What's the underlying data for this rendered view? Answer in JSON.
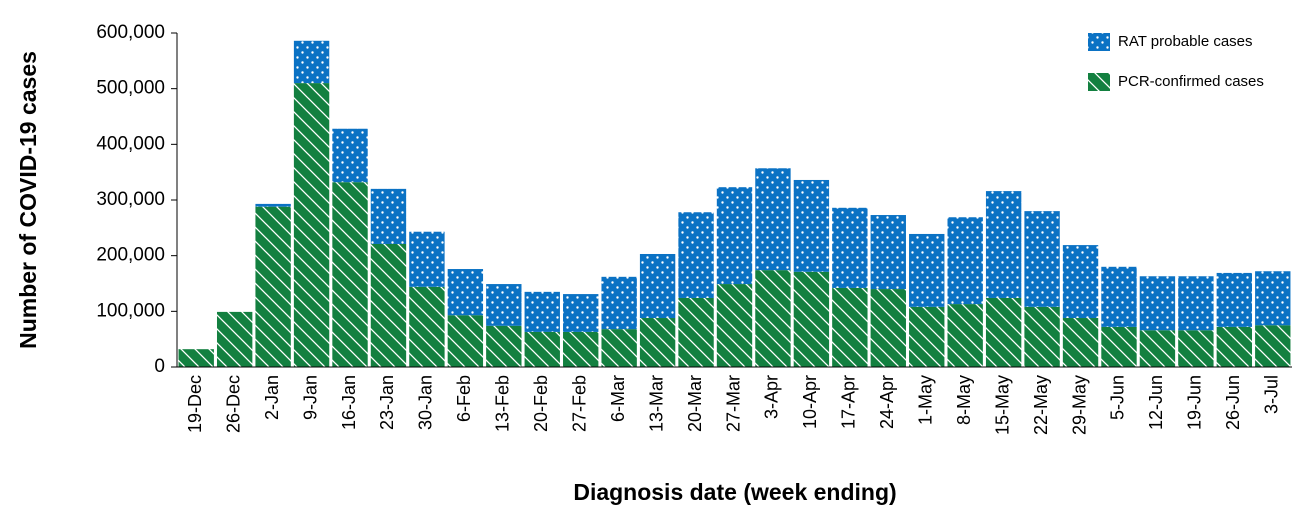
{
  "chart_data": {
    "type": "stacked_bar",
    "x_label": "Diagnosis date (week ending)",
    "y_label": "Number of COVID-19 cases",
    "categories": [
      "19-Dec",
      "26-Dec",
      "2-Jan",
      "9-Jan",
      "16-Jan",
      "23-Jan",
      "30-Jan",
      "6-Feb",
      "13-Feb",
      "20-Feb",
      "27-Feb",
      "6-Mar",
      "13-Mar",
      "20-Mar",
      "27-Mar",
      "3-Apr",
      "10-Apr",
      "17-Apr",
      "24-Apr",
      "1-May",
      "8-May",
      "15-May",
      "22-May",
      "29-May",
      "5-Jun",
      "12-Jun",
      "19-Jun",
      "26-Jun",
      "3-Jul"
    ],
    "series": [
      {
        "name": "PCR-confirmed cases",
        "color": "#138040",
        "pattern": "hatch",
        "values": [
          32000,
          99000,
          288000,
          510000,
          332000,
          221000,
          144000,
          93000,
          74000,
          63000,
          63000,
          68000,
          88000,
          124000,
          149000,
          174000,
          171000,
          142000,
          140000,
          108000,
          113000,
          124000,
          108000,
          88000,
          72000,
          66000,
          66000,
          72000,
          75000
        ]
      },
      {
        "name": "RAT probable cases",
        "color": "#0b72c4",
        "pattern": "dots",
        "values": [
          0,
          0,
          5000,
          76000,
          96000,
          99000,
          99000,
          83000,
          75000,
          72000,
          68000,
          94000,
          115000,
          154000,
          174000,
          183000,
          165000,
          144000,
          133000,
          131000,
          156000,
          192000,
          172000,
          131000,
          108000,
          97000,
          97000,
          97000,
          97000
        ]
      }
    ],
    "ylim": [
      0,
      600000
    ],
    "yticks": [
      0,
      {
        "value": 100000,
        "label": "100,000"
      },
      {
        "value": 200000,
        "label": "200,000"
      },
      {
        "value": 300000,
        "label": "300,000"
      },
      {
        "value": 400000,
        "label": "400,000"
      },
      {
        "value": 500000,
        "label": "500,000"
      },
      {
        "value": 600000,
        "label": "600,000"
      }
    ],
    "grid": false,
    "legend": "upper right"
  }
}
